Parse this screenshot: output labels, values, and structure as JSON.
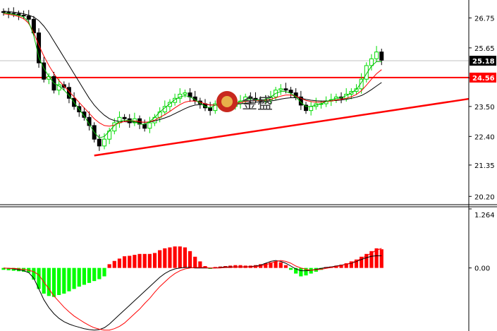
{
  "chart_data": [
    {
      "type": "candlestick",
      "title": "",
      "ylim": [
        20.0,
        27.2
      ],
      "y_ticks": [
        "26.75",
        "25.65",
        "24.55",
        "23.50",
        "22.40",
        "21.35",
        "20.20"
      ],
      "y_tick_values": [
        26.75,
        25.65,
        24.55,
        23.5,
        22.4,
        21.35,
        20.2
      ],
      "grid": false,
      "price_levels": [
        {
          "label": "25.18",
          "value": 25.18,
          "color": "#000000",
          "line": "#c0c0c0"
        },
        {
          "label": "24.56",
          "value": 24.56,
          "color": "#ff0000",
          "line": "#ff0000"
        }
      ],
      "trendline": {
        "from": [
          18,
          21.7
        ],
        "to": [
          96,
          23.78
        ],
        "color": "#ff0000"
      },
      "close": [
        26.95,
        26.92,
        26.9,
        26.85,
        26.82,
        26.7,
        26.2,
        25.1,
        24.5,
        24.6,
        24.1,
        24.3,
        24.2,
        23.8,
        23.5,
        23.3,
        23.1,
        22.8,
        22.3,
        22.05,
        22.3,
        22.6,
        22.9,
        23.1,
        23.05,
        22.9,
        23.05,
        22.85,
        22.7,
        22.9,
        23.1,
        23.3,
        23.5,
        23.65,
        23.8,
        23.95,
        24.0,
        23.85,
        23.7,
        23.6,
        23.45,
        23.35,
        23.6,
        23.75,
        23.7,
        23.5,
        23.6,
        23.7,
        23.85,
        23.8,
        23.75,
        23.7,
        23.75,
        23.85,
        24.1,
        24.15,
        24.1,
        24.0,
        23.85,
        23.55,
        23.35,
        23.5,
        23.6,
        23.6,
        23.7,
        23.75,
        23.85,
        23.8,
        23.95,
        24.05,
        24.15,
        24.5,
        25.0,
        25.25,
        25.5,
        25.2
      ],
      "ma_green": [
        26.93,
        26.91,
        26.88,
        26.84,
        26.78,
        26.6,
        26.1,
        25.3,
        24.9,
        24.6,
        24.35,
        24.25,
        24.1,
        23.9,
        23.65,
        23.4,
        23.15,
        22.85,
        22.55,
        22.35,
        22.4,
        22.6,
        22.8,
        22.95,
        23.0,
        22.98,
        22.95,
        22.85,
        22.85,
        22.95,
        23.1,
        23.3,
        23.45,
        23.6,
        23.75,
        23.85,
        23.9,
        23.85,
        23.75,
        23.62,
        23.5,
        23.45,
        23.55,
        23.62,
        23.65,
        23.6,
        23.62,
        23.68,
        23.75,
        23.78,
        23.75,
        23.73,
        23.76,
        23.85,
        23.98,
        24.05,
        24.05,
        23.98,
        23.85,
        23.65,
        23.5,
        23.5,
        23.55,
        23.6,
        23.68,
        23.74,
        23.8,
        23.82,
        23.9,
        24.0,
        24.12,
        24.38,
        24.7,
        24.98,
        25.15,
        25.15
      ],
      "ma_red": [
        26.9,
        26.88,
        26.85,
        26.8,
        26.72,
        26.55,
        26.2,
        25.75,
        25.35,
        25.0,
        24.7,
        24.45,
        24.25,
        24.05,
        23.85,
        23.65,
        23.45,
        23.25,
        23.05,
        22.9,
        22.8,
        22.78,
        22.82,
        22.9,
        22.95,
        22.97,
        22.97,
        22.94,
        22.92,
        22.94,
        23.0,
        23.1,
        23.2,
        23.32,
        23.45,
        23.57,
        23.66,
        23.7,
        23.7,
        23.66,
        23.6,
        23.55,
        23.55,
        23.57,
        23.6,
        23.6,
        23.61,
        23.64,
        23.68,
        23.7,
        23.72,
        23.72,
        23.73,
        23.76,
        23.82,
        23.88,
        23.92,
        23.92,
        23.88,
        23.8,
        23.72,
        23.68,
        23.66,
        23.66,
        23.68,
        23.7,
        23.74,
        23.76,
        23.8,
        23.86,
        23.94,
        24.08,
        24.28,
        24.5,
        24.7,
        24.85
      ],
      "ma_black": [
        27.0,
        26.98,
        26.96,
        26.94,
        26.9,
        26.85,
        26.78,
        26.65,
        26.45,
        26.2,
        25.9,
        25.6,
        25.3,
        25.0,
        24.7,
        24.4,
        24.1,
        23.8,
        23.55,
        23.35,
        23.18,
        23.05,
        22.98,
        22.95,
        22.94,
        22.93,
        22.93,
        22.92,
        22.92,
        22.93,
        22.97,
        23.02,
        23.08,
        23.15,
        23.24,
        23.33,
        23.42,
        23.5,
        23.55,
        23.57,
        23.57,
        23.56,
        23.55,
        23.55,
        23.56,
        23.57,
        23.58,
        23.6,
        23.62,
        23.64,
        23.66,
        23.67,
        23.68,
        23.7,
        23.73,
        23.77,
        23.8,
        23.82,
        23.82,
        23.8,
        23.76,
        23.73,
        23.71,
        23.7,
        23.7,
        23.71,
        23.72,
        23.74,
        23.76,
        23.8,
        23.84,
        23.9,
        24.0,
        24.12,
        24.25,
        24.38
      ]
    },
    {
      "type": "macd",
      "ylim": [
        -1.35,
        1.264
      ],
      "y_ticks": [
        "1.264",
        "0.00"
      ],
      "y_tick_values": [
        1.264,
        0.0
      ],
      "histogram": [
        -0.04,
        -0.05,
        -0.06,
        -0.07,
        -0.08,
        -0.1,
        -0.25,
        -0.45,
        -0.55,
        -0.6,
        -0.62,
        -0.58,
        -0.55,
        -0.5,
        -0.45,
        -0.4,
        -0.36,
        -0.32,
        -0.28,
        -0.24,
        -0.18,
        0.08,
        0.15,
        0.2,
        0.25,
        0.26,
        0.28,
        0.3,
        0.3,
        0.3,
        0.32,
        0.38,
        0.42,
        0.44,
        0.46,
        0.46,
        0.44,
        0.36,
        0.24,
        0.14,
        0.04,
        -0.02,
        0.02,
        0.03,
        0.04,
        0.05,
        0.06,
        0.06,
        0.05,
        0.05,
        0.06,
        0.08,
        0.1,
        0.12,
        0.14,
        0.12,
        0.06,
        -0.04,
        -0.12,
        -0.18,
        -0.16,
        -0.12,
        -0.08,
        -0.04,
        0.02,
        0.03,
        0.05,
        0.07,
        0.1,
        0.14,
        0.18,
        0.24,
        0.3,
        0.36,
        0.42,
        0.4
      ],
      "macd_black": [
        0.0,
        -0.01,
        -0.02,
        -0.04,
        -0.06,
        -0.1,
        -0.22,
        -0.45,
        -0.68,
        -0.85,
        -0.98,
        -1.08,
        -1.15,
        -1.2,
        -1.24,
        -1.27,
        -1.3,
        -1.32,
        -1.33,
        -1.32,
        -1.28,
        -1.2,
        -1.1,
        -1.0,
        -0.9,
        -0.8,
        -0.7,
        -0.6,
        -0.5,
        -0.4,
        -0.3,
        -0.2,
        -0.12,
        -0.06,
        -0.02,
        0.0,
        0.01,
        0.01,
        0.0,
        0.0,
        0.0,
        0.0,
        0.0,
        0.01,
        0.02,
        0.02,
        0.02,
        0.02,
        0.02,
        0.03,
        0.04,
        0.06,
        0.1,
        0.14,
        0.16,
        0.14,
        0.1,
        0.04,
        -0.02,
        -0.06,
        -0.06,
        -0.05,
        -0.03,
        -0.01,
        0.01,
        0.02,
        0.04,
        0.06,
        0.08,
        0.1,
        0.14,
        0.18,
        0.22,
        0.25,
        0.26,
        0.26
      ],
      "signal_red": [
        0.0,
        -0.01,
        -0.01,
        -0.02,
        -0.03,
        -0.05,
        -0.08,
        -0.15,
        -0.3,
        -0.45,
        -0.6,
        -0.72,
        -0.84,
        -0.94,
        -1.03,
        -1.1,
        -1.17,
        -1.23,
        -1.28,
        -1.31,
        -1.33,
        -1.33,
        -1.3,
        -1.25,
        -1.18,
        -1.08,
        -0.98,
        -0.88,
        -0.76,
        -0.65,
        -0.52,
        -0.4,
        -0.3,
        -0.2,
        -0.12,
        -0.06,
        -0.02,
        0.0,
        0.01,
        0.01,
        0.01,
        0.0,
        0.0,
        0.0,
        0.01,
        0.01,
        0.02,
        0.02,
        0.02,
        0.02,
        0.03,
        0.04,
        0.07,
        0.1,
        0.14,
        0.16,
        0.14,
        0.1,
        0.04,
        0.0,
        -0.03,
        -0.05,
        -0.04,
        -0.03,
        -0.01,
        0.01,
        0.03,
        0.05,
        0.08,
        0.11,
        0.15,
        0.2,
        0.26,
        0.32,
        0.38,
        0.42
      ]
    }
  ],
  "watermark": {
    "text": "金盛"
  },
  "colors": {
    "up": "#00dd00",
    "down": "#000000",
    "ma_green": "#00bb00",
    "ma_red": "#ff0000",
    "ma_black": "#000000",
    "hist_pos": "#ff0000",
    "hist_neg": "#00ff00",
    "axis": "#000000"
  }
}
